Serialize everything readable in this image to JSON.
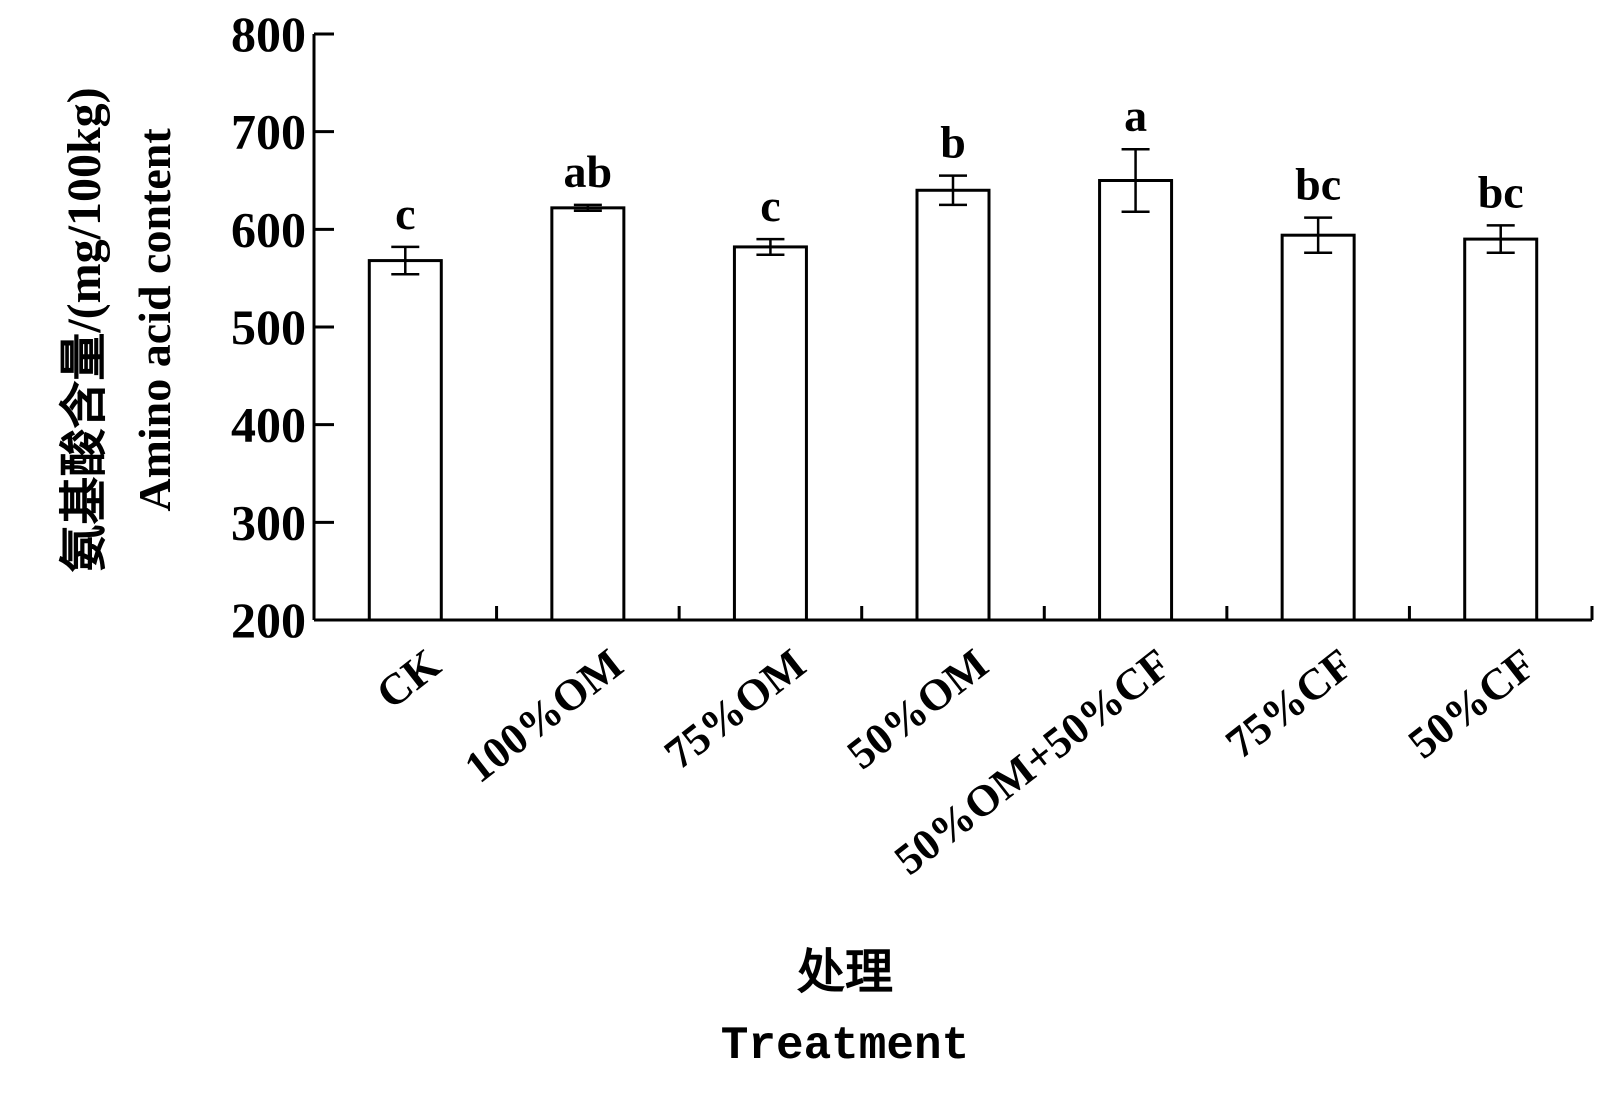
{
  "chart_data": {
    "type": "bar",
    "categories": [
      "CK",
      "100%OM",
      "75%OM",
      "50%OM",
      "50%OM+50%CF",
      "75%CF",
      "50%CF"
    ],
    "values": [
      568,
      622,
      582,
      640,
      650,
      594,
      590
    ],
    "errors": [
      14,
      3,
      8,
      15,
      32,
      18,
      14
    ],
    "significance": [
      "c",
      "ab",
      "c",
      "b",
      "a",
      "bc",
      "bc"
    ],
    "ylim": [
      200,
      800
    ],
    "yticks": [
      200,
      300,
      400,
      500,
      600,
      700,
      800
    ],
    "ytick_labels": [
      "200",
      "300",
      "400",
      "500",
      "600",
      "700",
      "800"
    ],
    "ylabel_cn": "氨基酸含量/(mg/100kg)",
    "ylabel_en": "Amino acid content",
    "xlabel_cn": "处理",
    "xlabel_en": "Treatment",
    "grid": false,
    "legend": "none",
    "bar_fill": "#ffffff",
    "bar_stroke": "#000000"
  }
}
